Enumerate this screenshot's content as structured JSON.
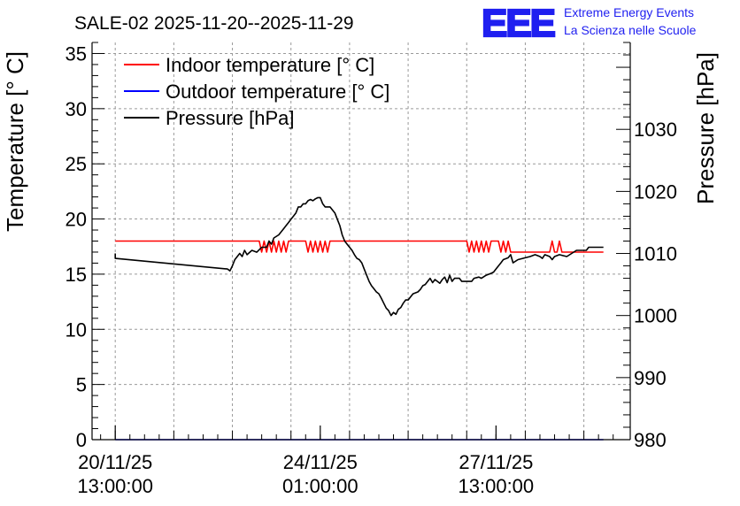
{
  "chart_data": {
    "type": "line",
    "title": "SALE-02 2025-11-20--2025-11-29",
    "ylabel_left": "Temperature [° C]",
    "ylabel_right": "Pressure [hPa]",
    "xlabel": "",
    "x_unit": "hours since 20/11/25 13:00:00",
    "xlim": [
      -9.5,
      211
    ],
    "ylim_left": [
      0,
      36
    ],
    "ylim_right": [
      980,
      1044
    ],
    "yticks_left": [
      0,
      5,
      10,
      15,
      20,
      25,
      30,
      35
    ],
    "yticks_right": [
      980,
      990,
      1000,
      1010,
      1020,
      1030
    ],
    "xticks": [
      {
        "x": 0,
        "line1": "20/11/25",
        "line2": "13:00:00"
      },
      {
        "x": 84,
        "line1": "24/11/25",
        "line2": "01:00:00"
      },
      {
        "x": 156,
        "line1": "27/11/25",
        "line2": "13:00:00"
      }
    ],
    "grid": true,
    "legend_position": "top-left",
    "logo": {
      "mark": "EEE",
      "line1": "Extreme Energy Events",
      "line2": "La Scienza nelle Scuole"
    },
    "series": [
      {
        "name": "Indoor temperature [° C]",
        "axis": "left",
        "color": "#ff0000",
        "points": [
          [
            0,
            18
          ],
          [
            59,
            18
          ],
          [
            60,
            17
          ],
          [
            61,
            18
          ],
          [
            62,
            17
          ],
          [
            63,
            18
          ],
          [
            64,
            17
          ],
          [
            65,
            18
          ],
          [
            66,
            17
          ],
          [
            67,
            18
          ],
          [
            68,
            17
          ],
          [
            69,
            18
          ],
          [
            70,
            17
          ],
          [
            71,
            18
          ],
          [
            78,
            18
          ],
          [
            79,
            17
          ],
          [
            80,
            18
          ],
          [
            81,
            17
          ],
          [
            82,
            18
          ],
          [
            83,
            17
          ],
          [
            84,
            18
          ],
          [
            85,
            17
          ],
          [
            86,
            18
          ],
          [
            87,
            17
          ],
          [
            88,
            18
          ],
          [
            144,
            18
          ],
          [
            145,
            17
          ],
          [
            146,
            18
          ],
          [
            147,
            17
          ],
          [
            148,
            18
          ],
          [
            149,
            17
          ],
          [
            150,
            18
          ],
          [
            151,
            17
          ],
          [
            152,
            18
          ],
          [
            153,
            17
          ],
          [
            154,
            18
          ],
          [
            157,
            18
          ],
          [
            158,
            17
          ],
          [
            159,
            18
          ],
          [
            160,
            17
          ],
          [
            161,
            18
          ],
          [
            162,
            17
          ],
          [
            163,
            17
          ],
          [
            178,
            17
          ],
          [
            179,
            18
          ],
          [
            180,
            17
          ],
          [
            181,
            17
          ],
          [
            182,
            18
          ],
          [
            183,
            17
          ],
          [
            200,
            17
          ]
        ]
      },
      {
        "name": "Outdoor temperature [° C]",
        "axis": "left",
        "color": "#0000ff",
        "points": [
          [
            0,
            0
          ],
          [
            200,
            0
          ]
        ]
      },
      {
        "name": "Pressure [hPa]",
        "axis": "right",
        "color": "#000000",
        "points": [
          [
            0,
            1010
          ],
          [
            0,
            1009.2
          ],
          [
            46,
            1007.5
          ],
          [
            47,
            1007.2
          ],
          [
            48,
            1008
          ],
          [
            49,
            1009
          ],
          [
            51,
            1010
          ],
          [
            52,
            1009.5
          ],
          [
            53,
            1010.5
          ],
          [
            54,
            1009.8
          ],
          [
            56,
            1010.5
          ],
          [
            58,
            1010.2
          ],
          [
            60,
            1011
          ],
          [
            62,
            1011
          ],
          [
            63,
            1012
          ],
          [
            64,
            1011.5
          ],
          [
            65,
            1012.5
          ],
          [
            67,
            1013
          ],
          [
            68,
            1013.5
          ],
          [
            69,
            1014
          ],
          [
            70,
            1014.5
          ],
          [
            71,
            1015
          ],
          [
            72,
            1015.5
          ],
          [
            73,
            1016
          ],
          [
            74,
            1016.5
          ],
          [
            75,
            1017.5
          ],
          [
            76,
            1017.5
          ],
          [
            77,
            1018
          ],
          [
            78,
            1018
          ],
          [
            79,
            1018.5
          ],
          [
            80,
            1018.7
          ],
          [
            81,
            1018.5
          ],
          [
            82,
            1018.8
          ],
          [
            83,
            1019
          ],
          [
            84,
            1019
          ],
          [
            85,
            1018
          ],
          [
            86,
            1017.5
          ],
          [
            88,
            1017.5
          ],
          [
            89,
            1017
          ],
          [
            90,
            1016.5
          ],
          [
            91,
            1015.5
          ],
          [
            92,
            1014.5
          ],
          [
            93,
            1013
          ],
          [
            94,
            1012
          ],
          [
            95,
            1011.5
          ],
          [
            96,
            1011
          ],
          [
            97,
            1010.5
          ],
          [
            98,
            1009.8
          ],
          [
            99,
            1009.2
          ],
          [
            100,
            1009
          ],
          [
            101,
            1008.5
          ],
          [
            102,
            1007.5
          ],
          [
            103,
            1006.5
          ],
          [
            104,
            1005.5
          ],
          [
            105,
            1004.8
          ],
          [
            106,
            1004.3
          ],
          [
            107,
            1003.8
          ],
          [
            108,
            1003.5
          ],
          [
            109,
            1002.8
          ],
          [
            110,
            1002
          ],
          [
            111,
            1001.2
          ],
          [
            112,
            1000.8
          ],
          [
            113,
            1000
          ],
          [
            114,
            1000.5
          ],
          [
            115,
            1000.2
          ],
          [
            116,
            1001
          ],
          [
            117,
            1001.3
          ],
          [
            118,
            1002
          ],
          [
            119,
            1002.5
          ],
          [
            120,
            1002.5
          ],
          [
            121,
            1003
          ],
          [
            122,
            1003.5
          ],
          [
            124,
            1003.8
          ],
          [
            125,
            1004.2
          ],
          [
            126,
            1004.8
          ],
          [
            127,
            1005
          ],
          [
            128,
            1005.5
          ],
          [
            129,
            1006
          ],
          [
            130,
            1005.3
          ],
          [
            131,
            1005.8
          ],
          [
            132,
            1005.5
          ],
          [
            133,
            1005.2
          ],
          [
            134,
            1005.8
          ],
          [
            135,
            1006.2
          ],
          [
            136,
            1005.3
          ],
          [
            137,
            1006.5
          ],
          [
            138,
            1005.5
          ],
          [
            139,
            1006
          ],
          [
            141,
            1006
          ],
          [
            142,
            1005.5
          ],
          [
            146,
            1005.5
          ],
          [
            147,
            1006
          ],
          [
            149,
            1006.2
          ],
          [
            150,
            1006
          ],
          [
            152,
            1006.5
          ],
          [
            154,
            1006.8
          ],
          [
            155,
            1007
          ],
          [
            156,
            1007.5
          ],
          [
            157,
            1008
          ],
          [
            158,
            1008.5
          ],
          [
            159,
            1009
          ],
          [
            161,
            1009.3
          ],
          [
            162,
            1009.8
          ],
          [
            163,
            1008.5
          ],
          [
            165,
            1009
          ],
          [
            168,
            1009.3
          ],
          [
            170,
            1009.5
          ],
          [
            172,
            1009.8
          ],
          [
            174,
            1009.5
          ],
          [
            175,
            1009.2
          ],
          [
            176,
            1009.8
          ],
          [
            178,
            1009.5
          ],
          [
            179,
            1009
          ],
          [
            180,
            1009.5
          ],
          [
            182,
            1009.8
          ],
          [
            185,
            1009.5
          ],
          [
            187,
            1010
          ],
          [
            189,
            1010.5
          ],
          [
            193,
            1010.5
          ],
          [
            194,
            1011
          ],
          [
            200,
            1011
          ]
        ]
      }
    ]
  }
}
